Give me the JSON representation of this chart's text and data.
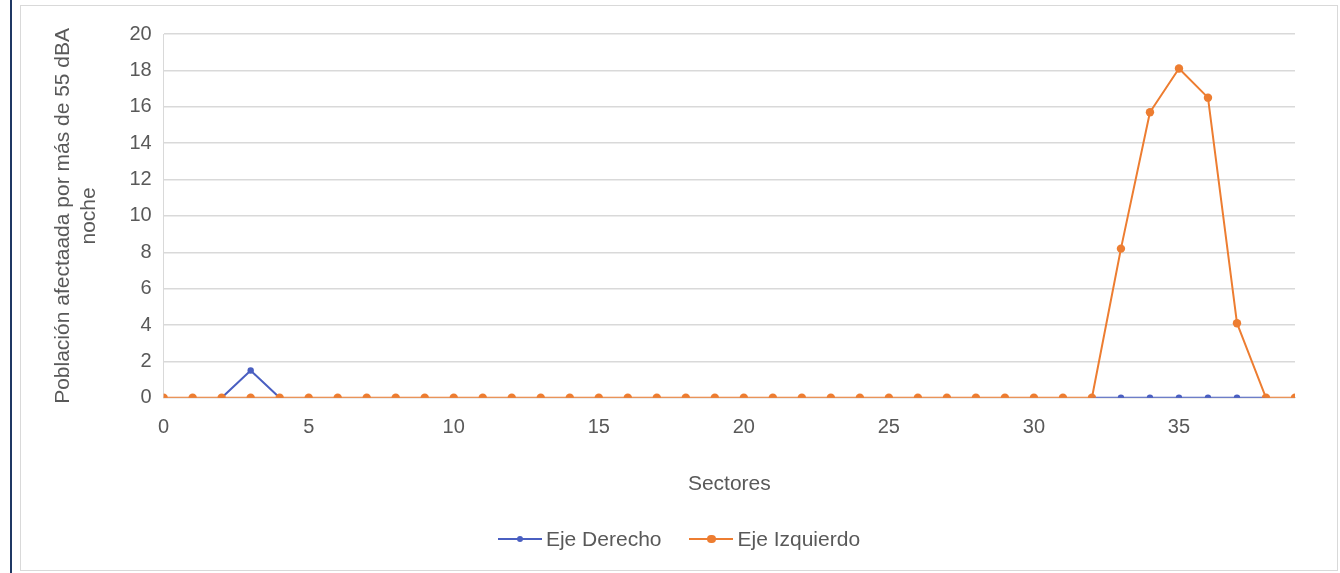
{
  "chart_data": {
    "type": "line",
    "xlabel": "Sectores",
    "ylabel": "Población afectaada por más de 55 dBA noche",
    "x": [
      0,
      1,
      2,
      3,
      4,
      5,
      6,
      7,
      8,
      9,
      10,
      11,
      12,
      13,
      14,
      15,
      16,
      17,
      18,
      19,
      20,
      21,
      22,
      23,
      24,
      25,
      26,
      27,
      28,
      29,
      30,
      31,
      32,
      33,
      34,
      35,
      36,
      37,
      38,
      39
    ],
    "xlim": [
      0,
      39
    ],
    "xticks": [
      0,
      5,
      10,
      15,
      20,
      25,
      30,
      35
    ],
    "ylim": [
      0,
      20
    ],
    "yticks": [
      0,
      2,
      4,
      6,
      8,
      10,
      12,
      14,
      16,
      18,
      20
    ],
    "grid": "y",
    "legend": "bottom",
    "marker": "circle",
    "line_style": "solid",
    "series": [
      {
        "name": "Eje Derecho",
        "color": "#4a5fc1",
        "values": [
          null,
          null,
          0,
          1.5,
          0,
          null,
          null,
          null,
          null,
          null,
          null,
          null,
          null,
          null,
          null,
          null,
          null,
          null,
          null,
          null,
          null,
          null,
          null,
          null,
          null,
          null,
          null,
          null,
          null,
          null,
          null,
          null,
          0,
          0,
          0,
          0,
          0,
          0,
          0,
          null
        ]
      },
      {
        "name": "Eje Izquierdo",
        "color": "#ed7d31",
        "values": [
          0,
          0,
          0,
          0,
          0,
          0,
          0,
          0,
          0,
          0,
          0,
          0,
          0,
          0,
          0,
          0,
          0,
          0,
          0,
          0,
          0,
          0,
          0,
          0,
          0,
          0,
          0,
          0,
          0,
          0,
          0,
          0,
          0,
          8.2,
          15.7,
          18.1,
          16.5,
          4.1,
          0,
          0
        ]
      }
    ]
  }
}
